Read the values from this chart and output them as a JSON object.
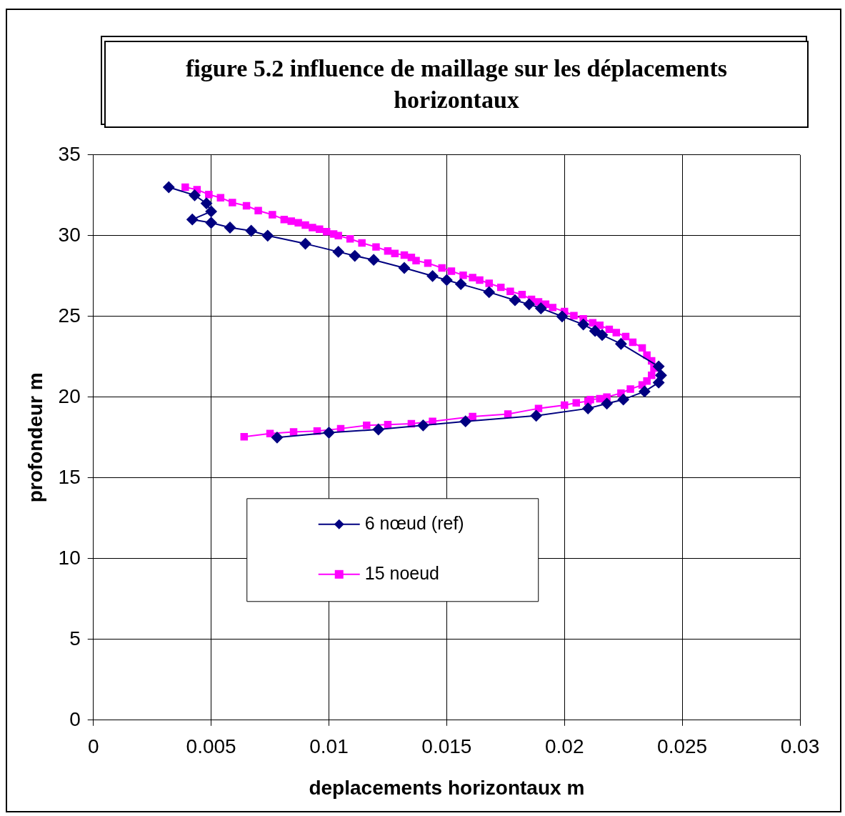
{
  "chart_data": {
    "type": "line",
    "title": "figure 5.2 influence de maillage sur les déplacements horizontaux",
    "xlabel": "deplacements horizontaux m",
    "ylabel": "profondeur m",
    "xlim": [
      0,
      0.03
    ],
    "xticks": [
      0,
      0.005,
      0.01,
      0.015,
      0.02,
      0.025,
      0.03
    ],
    "ylim": [
      0,
      35
    ],
    "yticks": [
      0,
      5,
      10,
      15,
      20,
      25,
      30,
      35
    ],
    "grid": true,
    "legend": "bottom left",
    "line_style": "solid",
    "series": [
      {
        "name": "6 nœud (ref)",
        "color": "#000080",
        "marker": "diamond",
        "x": [
          0.0032,
          0.0043,
          0.0048,
          0.005,
          0.0042,
          0.005,
          0.0058,
          0.0067,
          0.0074,
          0.009,
          0.0104,
          0.0111,
          0.0119,
          0.0132,
          0.0144,
          0.015,
          0.0156,
          0.0168,
          0.0179,
          0.0185,
          0.019,
          0.0199,
          0.0208,
          0.0213,
          0.0216,
          0.0224,
          0.024,
          0.0241,
          0.024,
          0.0234,
          0.0225,
          0.0218,
          0.021,
          0.0188,
          0.0158,
          0.014,
          0.0121,
          0.01,
          0.0078
        ],
        "values": [
          33,
          32.5,
          32,
          31.5,
          31,
          30.8,
          30.5,
          30.3,
          30,
          29.5,
          29,
          28.75,
          28.5,
          28,
          27.5,
          27.25,
          27,
          26.5,
          26,
          25.75,
          25.5,
          25,
          24.5,
          24.1,
          23.85,
          23.3,
          21.9,
          21.35,
          20.9,
          20.35,
          19.85,
          19.6,
          19.3,
          18.85,
          18.5,
          18.25,
          18,
          17.8,
          17.5
        ]
      },
      {
        "name": "15 noeud",
        "color": "#ff00ff",
        "marker": "square",
        "x": [
          0.0039,
          0.0044,
          0.0049,
          0.0054,
          0.0059,
          0.0065,
          0.007,
          0.0076,
          0.0081,
          0.0084,
          0.0087,
          0.009,
          0.0093,
          0.0096,
          0.0099,
          0.0102,
          0.0104,
          0.0109,
          0.0114,
          0.012,
          0.0125,
          0.0128,
          0.0132,
          0.0135,
          0.0137,
          0.0142,
          0.0148,
          0.0152,
          0.0157,
          0.0161,
          0.0164,
          0.0168,
          0.0173,
          0.0177,
          0.0182,
          0.0186,
          0.0189,
          0.0192,
          0.0195,
          0.02,
          0.0204,
          0.0208,
          0.0212,
          0.0215,
          0.0219,
          0.0222,
          0.0226,
          0.0229,
          0.0233,
          0.0235,
          0.0237,
          0.0238,
          0.0237,
          0.0235,
          0.0233,
          0.0228,
          0.0224,
          0.0218,
          0.0215,
          0.0211,
          0.021,
          0.0205,
          0.02,
          0.0189,
          0.0176,
          0.0161,
          0.0144,
          0.0135,
          0.0125,
          0.0116,
          0.0105,
          0.0095,
          0.0085,
          0.0075,
          0.0064
        ],
        "values": [
          33,
          32.85,
          32.55,
          32.35,
          32.05,
          31.85,
          31.55,
          31.3,
          31,
          30.9,
          30.8,
          30.65,
          30.5,
          30.4,
          30.25,
          30.1,
          30,
          29.8,
          29.55,
          29.3,
          29.05,
          28.9,
          28.8,
          28.65,
          28.45,
          28.3,
          28,
          27.8,
          27.55,
          27.4,
          27.25,
          27.05,
          26.8,
          26.55,
          26.35,
          26.05,
          25.9,
          25.75,
          25.55,
          25.3,
          25.05,
          24.85,
          24.6,
          24.45,
          24.2,
          24,
          23.75,
          23.4,
          23.05,
          22.6,
          22.25,
          21.8,
          21.35,
          21,
          20.75,
          20.5,
          20.25,
          20,
          19.9,
          19.85,
          19.75,
          19.65,
          19.5,
          19.3,
          18.95,
          18.8,
          18.5,
          18.35,
          18.3,
          18.25,
          18.05,
          17.9,
          17.85,
          17.75,
          17.55
        ]
      }
    ]
  }
}
